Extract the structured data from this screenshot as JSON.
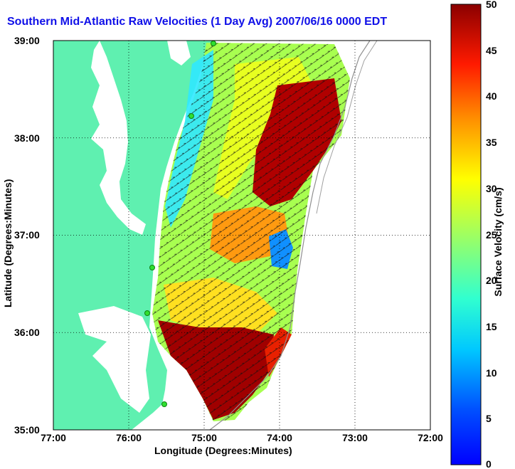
{
  "title": "Southern Mid-Atlantic Raw Velocities (1 Day Avg) 2007/06/16 0000 EDT",
  "x_axis": {
    "label": "Longitude (Degrees:Minutes)",
    "ticks": [
      "77:00",
      "76:00",
      "75:00",
      "74:00",
      "73:00",
      "72:00"
    ]
  },
  "y_axis": {
    "label": "Latitude (Degrees:Minutes)",
    "ticks": [
      "39:00",
      "38:00",
      "37:00",
      "36:00",
      "35:00"
    ]
  },
  "colorbar": {
    "label": "Surface Velocity (cm/s)",
    "ticks": [
      "50",
      "45",
      "40",
      "35",
      "30",
      "25",
      "20",
      "15",
      "10",
      "5",
      "0"
    ],
    "range": [
      0,
      50
    ],
    "colormap": "jet"
  },
  "colors": {
    "title": "#1010e8",
    "land": "#5ff0b0",
    "station": "#30e030"
  },
  "legend": "colorbar-right",
  "grid": true
}
